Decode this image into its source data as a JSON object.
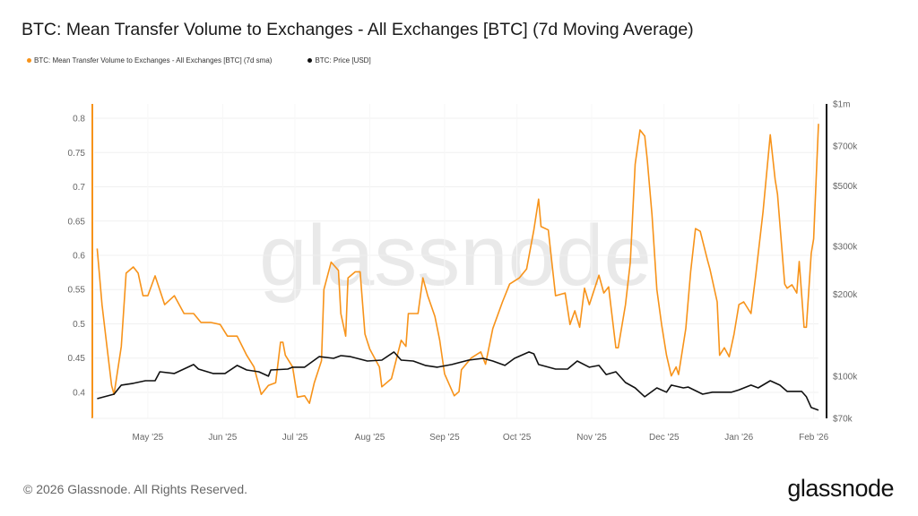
{
  "title": "BTC: Mean Transfer Volume to Exchanges - All Exchanges [BTC] (7d Moving Average)",
  "legend": [
    {
      "label": "BTC: Mean Transfer Volume to Exchanges - All Exchanges [BTC] (7d sma)",
      "color": "#f7931a"
    },
    {
      "label": "BTC: Price [USD]",
      "color": "#111111"
    }
  ],
  "watermark": "glassnode",
  "footer": {
    "copyright": "© 2026 Glassnode. All Rights Reserved.",
    "logo": "glassnode"
  },
  "chart_data": {
    "type": "line",
    "title": "BTC: Mean Transfer Volume to Exchanges - All Exchanges [BTC] (7d Moving Average)",
    "grid": true,
    "legend_position": "top-left",
    "x_range": [
      "2025-04-08",
      "2026-02-03"
    ],
    "x_ticks": [
      {
        "date": "2025-05-01",
        "label": "May '25"
      },
      {
        "date": "2025-06-01",
        "label": "Jun '25"
      },
      {
        "date": "2025-07-01",
        "label": "Jul '25"
      },
      {
        "date": "2025-08-01",
        "label": "Aug '25"
      },
      {
        "date": "2025-09-01",
        "label": "Sep '25"
      },
      {
        "date": "2025-10-01",
        "label": "Oct '25"
      },
      {
        "date": "2025-11-01",
        "label": "Nov '25"
      },
      {
        "date": "2025-12-01",
        "label": "Dec '25"
      },
      {
        "date": "2026-01-01",
        "label": "Jan '26"
      },
      {
        "date": "2026-02-01",
        "label": "Feb '26"
      }
    ],
    "y_left": {
      "range": [
        0.362,
        0.821
      ],
      "scale": "linear",
      "ticks": [
        {
          "v": 0.4,
          "label": "0.4"
        },
        {
          "v": 0.45,
          "label": "0.45"
        },
        {
          "v": 0.5,
          "label": "0.5"
        },
        {
          "v": 0.55,
          "label": "0.55"
        },
        {
          "v": 0.6,
          "label": "0.6"
        },
        {
          "v": 0.65,
          "label": "0.65"
        },
        {
          "v": 0.7,
          "label": "0.7"
        },
        {
          "v": 0.75,
          "label": "0.75"
        },
        {
          "v": 0.8,
          "label": "0.8"
        }
      ]
    },
    "y_right": {
      "range": [
        70000,
        1000000
      ],
      "scale": "log",
      "ticks": [
        {
          "v": 70000,
          "label": "$70k"
        },
        {
          "v": 100000,
          "label": "$100k"
        },
        {
          "v": 200000,
          "label": "$200k"
        },
        {
          "v": 300000,
          "label": "$300k"
        },
        {
          "v": 500000,
          "label": "$500k"
        },
        {
          "v": 700000,
          "label": "$700k"
        },
        {
          "v": 1000000,
          "label": "$1m"
        }
      ]
    },
    "series": [
      {
        "name": "BTC: Mean Transfer Volume to Exchanges - All Exchanges [BTC] (7d sma)",
        "axis": "left",
        "color": "#f7931a",
        "x": [
          "2025-04-10",
          "2025-04-12",
          "2025-04-14",
          "2025-04-16",
          "2025-04-17",
          "2025-04-20",
          "2025-04-22",
          "2025-04-25",
          "2025-04-27",
          "2025-04-29",
          "2025-05-01",
          "2025-05-04",
          "2025-05-08",
          "2025-05-12",
          "2025-05-16",
          "2025-05-20",
          "2025-05-23",
          "2025-05-27",
          "2025-05-31",
          "2025-06-03",
          "2025-06-07",
          "2025-06-11",
          "2025-06-14",
          "2025-06-17",
          "2025-06-20",
          "2025-06-23",
          "2025-06-25",
          "2025-06-26",
          "2025-06-27",
          "2025-06-30",
          "2025-07-02",
          "2025-07-05",
          "2025-07-07",
          "2025-07-09",
          "2025-07-12",
          "2025-07-13",
          "2025-07-16",
          "2025-07-19",
          "2025-07-20",
          "2025-07-22",
          "2025-07-23",
          "2025-07-26",
          "2025-07-28",
          "2025-07-30",
          "2025-08-01",
          "2025-08-05",
          "2025-08-06",
          "2025-08-10",
          "2025-08-14",
          "2025-08-16",
          "2025-08-17",
          "2025-08-21",
          "2025-08-23",
          "2025-08-25",
          "2025-08-28",
          "2025-08-30",
          "2025-09-01",
          "2025-09-05",
          "2025-09-07",
          "2025-09-08",
          "2025-09-12",
          "2025-09-16",
          "2025-09-18",
          "2025-09-21",
          "2025-09-25",
          "2025-09-28",
          "2025-10-02",
          "2025-10-05",
          "2025-10-08",
          "2025-10-10",
          "2025-10-11",
          "2025-10-14",
          "2025-10-17",
          "2025-10-21",
          "2025-10-23",
          "2025-10-25",
          "2025-10-27",
          "2025-10-29",
          "2025-10-31",
          "2025-11-04",
          "2025-11-06",
          "2025-11-08",
          "2025-11-09",
          "2025-11-11",
          "2025-11-12",
          "2025-11-15",
          "2025-11-17",
          "2025-11-19",
          "2025-11-21",
          "2025-11-23",
          "2025-11-24",
          "2025-11-26",
          "2025-11-28",
          "2025-11-30",
          "2025-12-02",
          "2025-12-04",
          "2025-12-06",
          "2025-12-07",
          "2025-12-10",
          "2025-12-12",
          "2025-12-14",
          "2025-12-16",
          "2025-12-19",
          "2025-12-20",
          "2025-12-23",
          "2025-12-24",
          "2025-12-26",
          "2025-12-28",
          "2025-12-30",
          "2026-01-01",
          "2026-01-03",
          "2026-01-06",
          "2026-01-08",
          "2026-01-11",
          "2026-01-14",
          "2026-01-16",
          "2026-01-17",
          "2026-01-20",
          "2026-01-21",
          "2026-01-23",
          "2026-01-25",
          "2026-01-26",
          "2026-01-28",
          "2026-01-29",
          "2026-01-31",
          "2026-02-01",
          "2026-02-03"
        ],
        "values": [
          0.61,
          0.528,
          0.469,
          0.41,
          0.397,
          0.467,
          0.574,
          0.583,
          0.574,
          0.541,
          0.541,
          0.57,
          0.528,
          0.541,
          0.515,
          0.515,
          0.502,
          0.502,
          0.499,
          0.482,
          0.482,
          0.454,
          0.437,
          0.397,
          0.41,
          0.414,
          0.473,
          0.473,
          0.454,
          0.437,
          0.393,
          0.395,
          0.384,
          0.414,
          0.446,
          0.55,
          0.59,
          0.578,
          0.515,
          0.482,
          0.567,
          0.576,
          0.576,
          0.485,
          0.463,
          0.437,
          0.408,
          0.42,
          0.476,
          0.467,
          0.515,
          0.515,
          0.567,
          0.541,
          0.511,
          0.476,
          0.427,
          0.395,
          0.401,
          0.433,
          0.45,
          0.459,
          0.441,
          0.493,
          0.532,
          0.558,
          0.567,
          0.58,
          0.637,
          0.682,
          0.642,
          0.637,
          0.541,
          0.545,
          0.499,
          0.519,
          0.495,
          0.552,
          0.528,
          0.571,
          0.545,
          0.554,
          0.524,
          0.465,
          0.465,
          0.528,
          0.59,
          0.733,
          0.783,
          0.774,
          0.741,
          0.659,
          0.55,
          0.498,
          0.454,
          0.424,
          0.437,
          0.426,
          0.493,
          0.576,
          0.639,
          0.635,
          0.593,
          0.58,
          0.532,
          0.454,
          0.465,
          0.452,
          0.485,
          0.528,
          0.532,
          0.515,
          0.571,
          0.663,
          0.776,
          0.711,
          0.689,
          0.558,
          0.552,
          0.557,
          0.545,
          0.591,
          0.495,
          0.495,
          0.603,
          0.624,
          0.792
        ]
      },
      {
        "name": "BTC: Price [USD]",
        "axis": "right",
        "color": "#111111",
        "x": [
          "2025-04-10",
          "2025-04-17",
          "2025-04-20",
          "2025-04-25",
          "2025-04-30",
          "2025-05-04",
          "2025-05-06",
          "2025-05-12",
          "2025-05-20",
          "2025-05-22",
          "2025-05-28",
          "2025-06-02",
          "2025-06-07",
          "2025-06-11",
          "2025-06-16",
          "2025-06-20",
          "2025-06-21",
          "2025-06-28",
          "2025-06-30",
          "2025-07-05",
          "2025-07-11",
          "2025-07-17",
          "2025-07-20",
          "2025-07-24",
          "2025-07-31",
          "2025-08-06",
          "2025-08-11",
          "2025-08-14",
          "2025-08-19",
          "2025-08-24",
          "2025-08-29",
          "2025-09-04",
          "2025-09-11",
          "2025-09-17",
          "2025-09-21",
          "2025-09-26",
          "2025-09-30",
          "2025-10-06",
          "2025-10-08",
          "2025-10-10",
          "2025-10-17",
          "2025-10-22",
          "2025-10-26",
          "2025-10-31",
          "2025-11-04",
          "2025-11-07",
          "2025-11-11",
          "2025-11-15",
          "2025-11-19",
          "2025-11-23",
          "2025-11-28",
          "2025-12-02",
          "2025-12-04",
          "2025-12-09",
          "2025-12-11",
          "2025-12-17",
          "2025-12-21",
          "2025-12-29",
          "2026-01-01",
          "2026-01-06",
          "2026-01-09",
          "2026-01-14",
          "2026-01-18",
          "2026-01-21",
          "2026-01-27",
          "2026-01-29",
          "2026-01-31",
          "2026-02-03"
        ],
        "values": [
          82700,
          85900,
          92700,
          94100,
          96200,
          96200,
          103800,
          102300,
          110400,
          106200,
          102300,
          102300,
          109500,
          105400,
          103800,
          100000,
          105400,
          106200,
          107900,
          107900,
          118000,
          116300,
          119000,
          118000,
          113700,
          114500,
          122700,
          114500,
          113700,
          109500,
          107900,
          110400,
          114500,
          116300,
          113700,
          109500,
          116300,
          122700,
          120800,
          110400,
          106200,
          106200,
          113700,
          107900,
          109500,
          101400,
          103800,
          94800,
          90600,
          84000,
          90600,
          87300,
          92700,
          90600,
          91200,
          85900,
          87300,
          87300,
          89100,
          92700,
          90600,
          96200,
          92700,
          87900,
          87900,
          84000,
          76700,
          75000
        ]
      }
    ]
  }
}
